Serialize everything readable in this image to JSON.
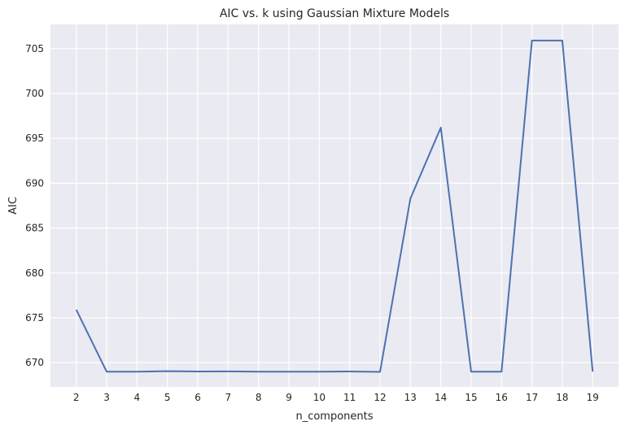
{
  "chart_data": {
    "type": "line",
    "title": "AIC vs. k using Gaussian Mixture Models",
    "xlabel": "n_components",
    "ylabel": "AIC",
    "x": [
      2,
      3,
      4,
      5,
      6,
      7,
      8,
      9,
      10,
      11,
      12,
      13,
      14,
      15,
      16,
      17,
      18,
      19
    ],
    "series": [
      {
        "values": [
          675.9,
          669.0,
          669.0,
          669.05,
          669.02,
          669.03,
          669.0,
          669.0,
          669.0,
          669.02,
          668.98,
          688.3,
          696.2,
          669.0,
          669.0,
          705.9,
          705.9,
          669.0
        ],
        "color": "#4c72b0"
      }
    ],
    "xticks": [
      "2",
      "3",
      "4",
      "5",
      "6",
      "7",
      "8",
      "9",
      "10",
      "11",
      "12",
      "13",
      "14",
      "15",
      "16",
      "17",
      "18",
      "19"
    ],
    "yticks": [
      "670",
      "675",
      "680",
      "685",
      "690",
      "695",
      "700",
      "705"
    ],
    "xlim": [
      1.15,
      19.85
    ],
    "ylim": [
      667.3,
      707.7
    ],
    "grid": true,
    "style": {
      "plot_bg": "#eaeaf2",
      "grid_color": "#ffffff"
    }
  }
}
